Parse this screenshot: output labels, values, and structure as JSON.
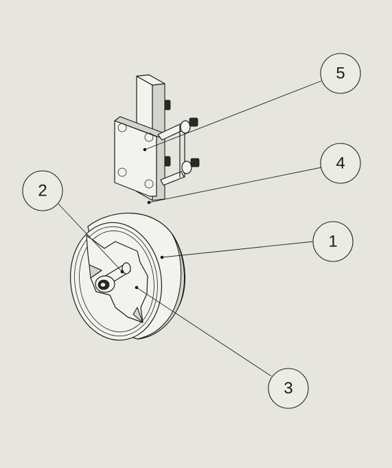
{
  "balloons": [
    {
      "label": "5"
    },
    {
      "label": "4"
    },
    {
      "label": "2"
    },
    {
      "label": "1"
    },
    {
      "label": "3"
    }
  ]
}
